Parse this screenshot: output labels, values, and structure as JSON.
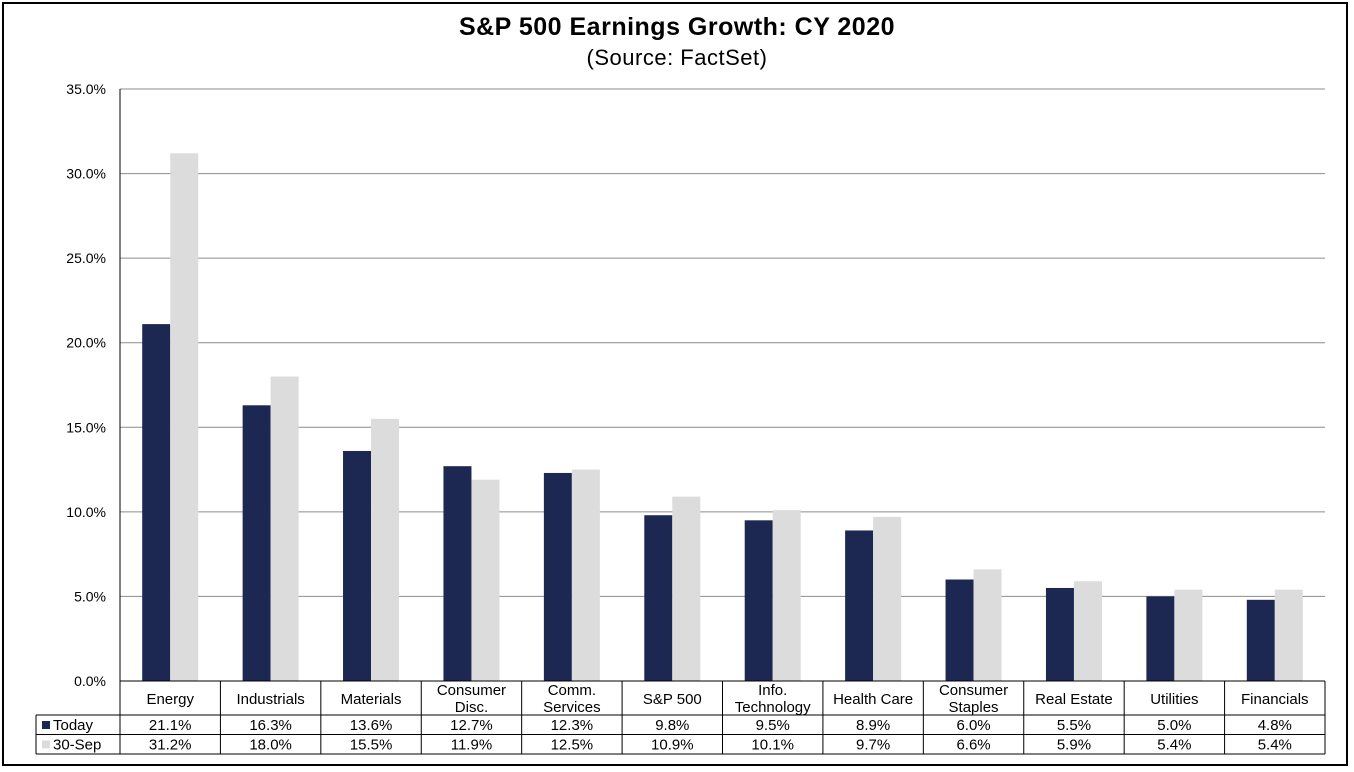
{
  "chart_data": {
    "type": "bar",
    "title": "S&P 500 Earnings Growth: CY 2020",
    "subtitle": "(Source: FactSet)",
    "xlabel": "",
    "ylabel": "",
    "ylim": [
      0,
      35
    ],
    "y_tick_labels": [
      "0.0%",
      "5.0%",
      "10.0%",
      "15.0%",
      "20.0%",
      "25.0%",
      "30.0%",
      "35.0%"
    ],
    "grid": true,
    "legend_position": "data-table-left",
    "categories": [
      [
        "Energy"
      ],
      [
        "Industrials"
      ],
      [
        "Materials"
      ],
      [
        "Consumer",
        "Disc."
      ],
      [
        "Comm.",
        "Services"
      ],
      [
        "S&P 500"
      ],
      [
        "Info.",
        "Technology"
      ],
      [
        "Health Care"
      ],
      [
        "Consumer",
        "Staples"
      ],
      [
        "Real Estate"
      ],
      [
        "Utilities"
      ],
      [
        "Financials"
      ]
    ],
    "series": [
      {
        "name": "Today",
        "color": "#1c2752",
        "values": [
          21.1,
          16.3,
          13.6,
          12.7,
          12.3,
          9.8,
          9.5,
          8.9,
          6.0,
          5.5,
          5.0,
          4.8
        ],
        "labels": [
          "21.1%",
          "16.3%",
          "13.6%",
          "12.7%",
          "12.3%",
          "9.8%",
          "9.5%",
          "8.9%",
          "6.0%",
          "5.5%",
          "5.0%",
          "4.8%"
        ]
      },
      {
        "name": "30-Sep",
        "color": "#dcdcdc",
        "values": [
          31.2,
          18.0,
          15.5,
          11.9,
          12.5,
          10.9,
          10.1,
          9.7,
          6.6,
          5.9,
          5.4,
          5.4
        ],
        "labels": [
          "31.2%",
          "18.0%",
          "15.5%",
          "11.9%",
          "12.5%",
          "10.9%",
          "10.1%",
          "9.7%",
          "6.6%",
          "5.9%",
          "5.4%",
          "5.4%"
        ]
      }
    ]
  }
}
